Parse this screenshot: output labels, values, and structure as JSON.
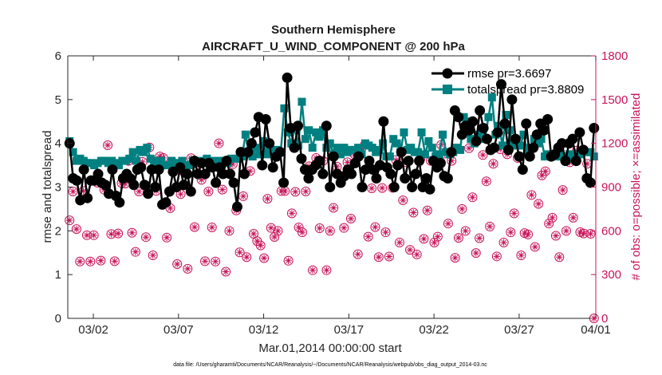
{
  "chart_data": {
    "type": "line",
    "title": "Southern Hemisphere",
    "subtitle": "AIRCRAFT_U_WIND_COMPONENT @ 200 hPa",
    "xlabel": "Mar.01,2014 00:00:00 start",
    "ylabel": "rmse and totalspread",
    "ylabel_right": "# of obs: o=possible; ×=assimilated",
    "footnote": "data file: /Users/gharamti/Documents/NCAR/Reanalysis/~/Documents/NCAR/Reanalysis/webpub/obs_diag_output_2014-03.nc",
    "xlim": [
      0,
      31
    ],
    "ylim": [
      0,
      6
    ],
    "ylim_right": [
      0,
      1800
    ],
    "x_ticks": [
      {
        "x": 1.5,
        "label": "03/02"
      },
      {
        "x": 6.5,
        "label": "03/07"
      },
      {
        "x": 11.5,
        "label": "03/12"
      },
      {
        "x": 16.5,
        "label": "03/17"
      },
      {
        "x": 21.5,
        "label": "03/22"
      },
      {
        "x": 26.5,
        "label": "03/27"
      },
      {
        "x": 31,
        "label": "04/01"
      }
    ],
    "y_ticks": [
      "0",
      "1",
      "2",
      "3",
      "4",
      "5",
      "6"
    ],
    "y_ticks_right": [
      "0",
      "300",
      "600",
      "900",
      "1200",
      "1500",
      "1800"
    ],
    "colors": {
      "rmse": "#000000",
      "spread": "#008080",
      "obs": "#c8145a",
      "axis": "#262626"
    },
    "series": [
      {
        "name": "rmse pr=3.6697",
        "color": "#000000",
        "marker": "circle",
        "y": [
          4.0,
          3.2,
          3.15,
          2.7,
          3.4,
          2.75,
          3.15,
          3.15,
          3.3,
          3.1,
          3.05,
          2.85,
          3.4,
          2.8,
          2.65,
          3.2,
          3.3,
          3.2,
          3.05,
          3.4,
          3.45,
          3.05,
          2.85,
          3.4,
          3.0,
          3.4,
          2.6,
          2.65,
          2.9,
          3.35,
          3.0,
          3.45,
          3.05,
          3.3,
          2.9,
          3.6,
          3.3,
          3.55,
          3.3,
          3.55,
          3.45,
          3.1,
          3.45,
          3.3,
          3.6,
          3.3,
          3.1,
          2.55,
          3.8,
          3.3,
          3.8,
          4.0,
          4.25,
          4.6,
          3.5,
          4.55,
          4.0,
          3.45,
          3.7,
          3.8,
          3.1,
          5.5,
          4.35,
          3.9,
          4.4,
          3.65,
          3.4,
          3.2,
          3.4,
          3.5,
          3.6,
          3.3,
          4.4,
          3.0,
          3.7,
          3.3,
          3.1,
          3.25,
          3.4,
          3.3,
          3.55,
          3.7,
          3.0,
          3.4,
          3.6,
          3.4,
          3.2,
          3.5,
          4.5,
          3.45,
          3.3,
          3.0,
          3.5,
          3.8,
          3.2,
          3.6,
          3.0,
          3.3,
          3.6,
          3.0,
          3.2,
          2.95,
          3.6,
          3.45,
          3.55,
          3.25,
          3.2,
          3.8,
          4.75,
          4.6,
          4.2,
          4.4,
          4.3,
          4.5,
          4.05,
          4.75,
          4.35,
          4.1,
          3.85,
          3.9,
          4.25,
          5.35,
          4.45,
          3.85,
          5.0,
          4.1,
          3.7,
          3.4,
          4.45,
          3.7,
          3.9,
          4.2,
          4.45,
          4.3,
          4.55,
          3.7,
          3.75,
          3.9,
          4.0,
          3.6,
          4.0,
          4.1,
          3.6,
          4.25,
          3.85,
          3.2,
          3.1,
          4.35
        ]
      },
      {
        "name": "totalspread pr=3.8809",
        "color": "#008080",
        "marker": "square",
        "y": [
          4.05,
          3.8,
          3.6,
          3.65,
          3.6,
          3.55,
          3.55,
          3.5,
          3.55,
          3.6,
          3.6,
          3.55,
          3.6,
          3.55,
          3.5,
          3.6,
          3.6,
          3.65,
          3.8,
          3.6,
          3.85,
          3.8,
          3.9,
          3.65,
          3.6,
          3.5,
          3.6,
          3.5,
          3.5,
          3.6,
          3.55,
          3.55,
          3.6,
          3.5,
          3.5,
          3.6,
          3.55,
          3.6,
          3.55,
          3.65,
          3.5,
          3.6,
          3.55,
          3.6,
          3.6,
          3.55,
          3.65,
          3.65,
          3.65,
          3.7,
          4.2,
          3.75,
          3.7,
          3.9,
          3.75,
          4.05,
          3.75,
          3.9,
          3.8,
          3.85,
          3.8,
          4.8,
          4.25,
          4.0,
          4.35,
          3.95,
          4.95,
          4.1,
          4.3,
          3.9,
          4.25,
          4.15,
          4.3,
          3.9,
          4.0,
          3.75,
          3.9,
          3.75,
          3.9,
          3.8,
          3.85,
          3.85,
          3.9,
          3.75,
          4.0,
          3.95,
          3.9,
          3.8,
          3.85,
          4.0,
          3.7,
          3.7,
          4.1,
          4.0,
          3.8,
          4.25,
          3.85,
          3.9,
          3.8,
          3.8,
          4.25,
          3.75,
          4.05,
          3.9,
          3.7,
          3.75,
          4.2,
          3.8,
          3.75,
          3.8,
          3.9,
          3.85,
          4.6,
          4.5,
          4.1,
          4.0,
          4.2,
          4.3,
          4.1,
          4.6,
          5.05,
          4.2,
          4.4,
          3.95,
          4.65,
          4.3,
          4.0,
          3.95,
          3.95,
          4.2,
          3.8,
          3.9,
          4.1,
          4.0,
          4.1,
          3.7,
          3.75,
          3.75,
          3.7,
          3.75,
          3.7,
          3.7,
          3.75,
          3.65,
          3.7,
          3.75,
          3.8,
          3.8,
          3.8,
          3.7
        ]
      },
      {
        "name": "# of obs possible",
        "axis": "right",
        "color": "#c8145a",
        "marker": "circle-open",
        "y": [
          672,
          870,
          612,
          390,
          873,
          570,
          390,
          570,
          930,
          396,
          882,
          1187,
          578,
          392,
          582,
          928,
          924,
          1080,
          587,
          456,
          870,
          1073,
          557,
          1172,
          432,
          874,
          1110,
          1100,
          554,
          756,
          1050,
          372,
          852,
          1003,
          340,
          1098,
          626,
          1056,
          950,
          392,
          870,
          624,
          390,
          1200,
          883,
          320,
          600,
          1057,
          740,
          453,
          838,
          420,
          1010,
          580,
          530,
          500,
          413,
          820,
          620,
          558,
          600,
          873,
          873,
          395,
          720,
          868,
          624,
          590,
          870,
          1043,
          330,
          1100,
          618,
          1080,
          330,
          600,
          758,
          1040,
          1158,
          620,
          1070,
          684,
          1126,
          440,
          1160,
          1190,
          560,
          892,
          626,
          420,
          894,
          590,
          424,
          895,
          1085,
          520,
          810,
          1070,
          470,
          725,
          438,
          1092,
          545,
          740,
          1080,
          520,
          560,
          1190,
          1130,
          650,
          1080,
          415,
          552,
          750,
          600,
          1167,
          830,
          448,
          550,
          1120,
          940,
          630,
          1060,
          425,
          1160,
          520,
          1125,
          590,
          720,
          1100,
          432,
          585,
          575,
          846,
          490,
          785,
          980,
          1009,
          650,
          690,
          566,
          420,
          880,
          600,
          1070,
          690,
          1150,
          591,
          582,
          1060,
          580,
          0
        ]
      },
      {
        "name": "# of obs assimilated",
        "axis": "right",
        "color": "#c8145a",
        "marker": "asterisk",
        "y": [
          672,
          870,
          612,
          390,
          873,
          570,
          390,
          570,
          930,
          396,
          882,
          1187,
          578,
          392,
          582,
          928,
          924,
          1080,
          587,
          456,
          870,
          1073,
          557,
          1172,
          432,
          874,
          1110,
          1100,
          554,
          756,
          1050,
          372,
          852,
          1003,
          340,
          1098,
          626,
          1056,
          950,
          392,
          870,
          624,
          390,
          1200,
          883,
          320,
          600,
          1057,
          740,
          453,
          838,
          420,
          1010,
          580,
          530,
          500,
          413,
          820,
          620,
          558,
          600,
          873,
          873,
          395,
          720,
          868,
          624,
          590,
          870,
          1043,
          330,
          1100,
          618,
          1080,
          330,
          600,
          758,
          1040,
          1158,
          620,
          1070,
          684,
          1126,
          440,
          1160,
          1190,
          560,
          892,
          626,
          420,
          894,
          590,
          424,
          895,
          1085,
          520,
          810,
          1070,
          470,
          725,
          438,
          1092,
          545,
          740,
          1080,
          520,
          560,
          1190,
          1130,
          650,
          1080,
          415,
          552,
          750,
          600,
          1167,
          830,
          448,
          550,
          1120,
          940,
          630,
          1060,
          425,
          1160,
          520,
          1125,
          590,
          720,
          1100,
          432,
          585,
          575,
          846,
          490,
          785,
          980,
          1009,
          650,
          690,
          566,
          420,
          880,
          600,
          1070,
          690,
          1150,
          591,
          582,
          1060,
          580,
          0
        ]
      }
    ],
    "legend_position": "top-right"
  }
}
